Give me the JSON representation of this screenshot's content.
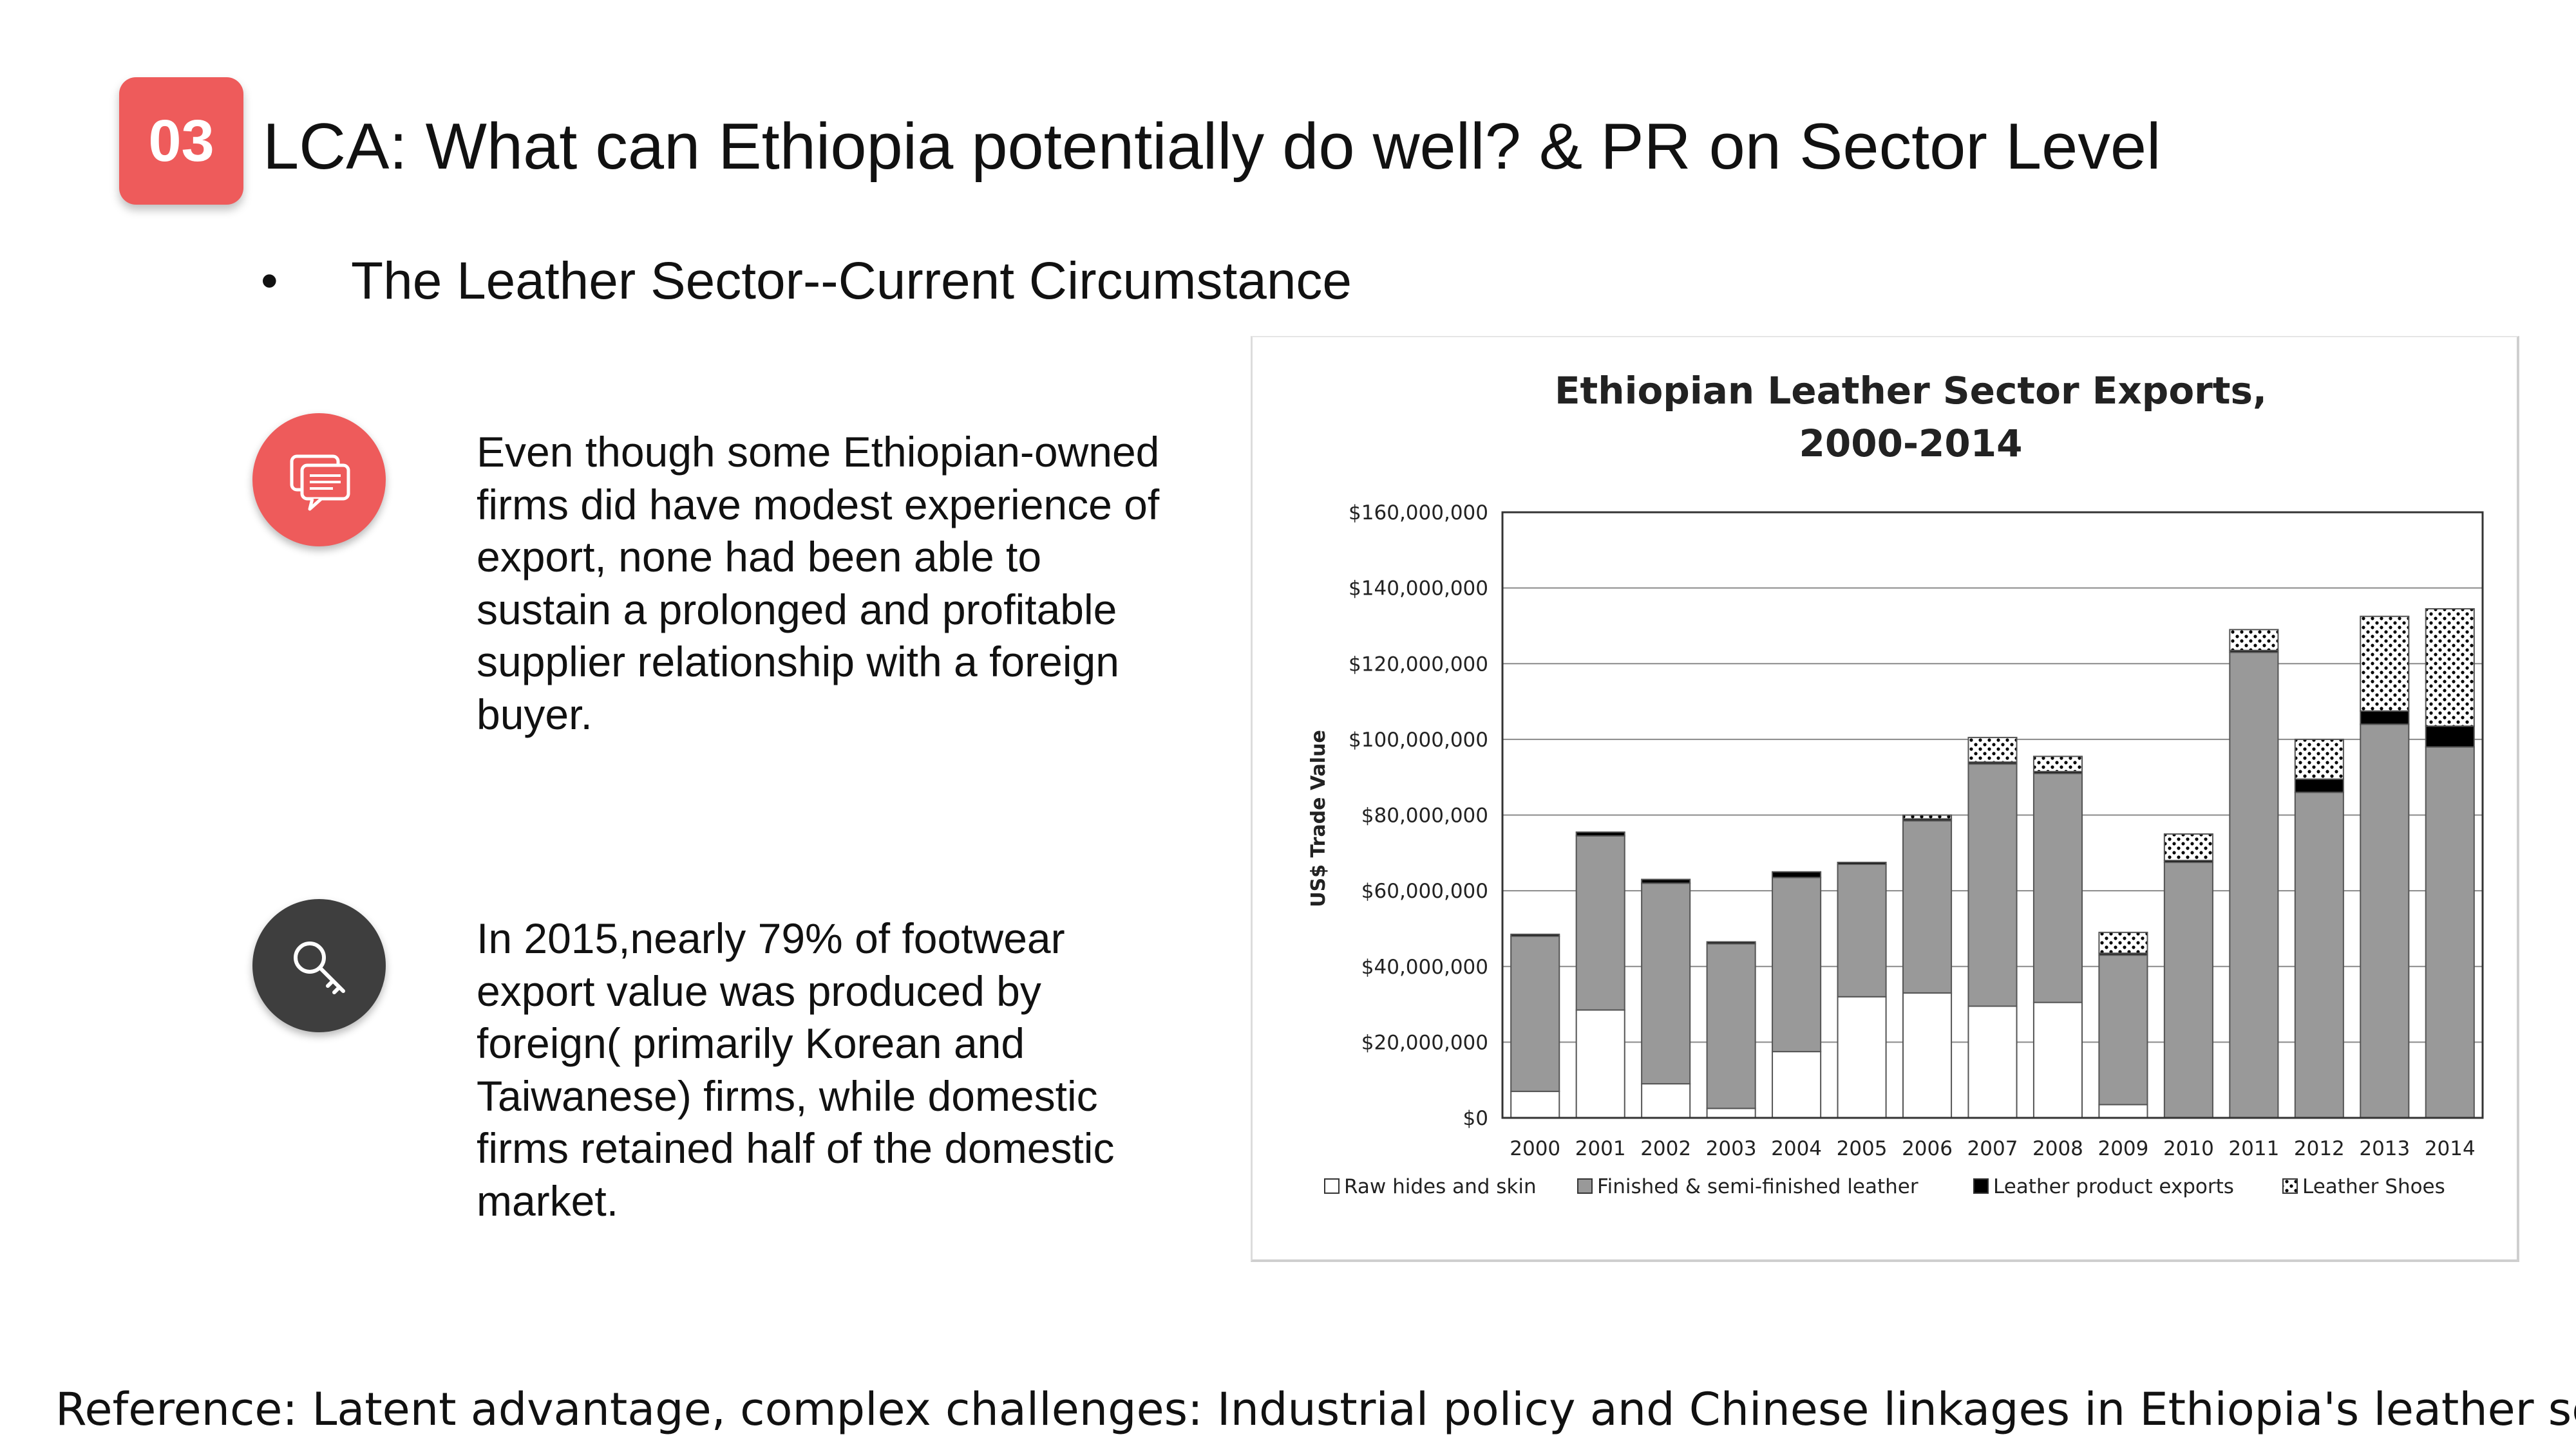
{
  "slide": {
    "number": "03",
    "title": "LCA: What can Ethiopia potentially do well? & PR on Sector Level",
    "bullet": "•",
    "subtitle": "The Leather Sector--Current Circumstance",
    "points": [
      {
        "icon": "chat-icon",
        "text": "Even though some Ethiopian-owned firms did have modest experience of export, none had been able to sustain a prolonged and profitable supplier relationship with a foreign buyer."
      },
      {
        "icon": "key-icon",
        "text": "In 2015,nearly 79% of footwear export value was produced by foreign( primarily Korean and Taiwanese) firms, while domestic firms retained half of the domestic market."
      }
    ],
    "reference": "Reference: Latent advantage, complex challenges: Industrial policy and Chinese linkages in Ethiopia's leather sector",
    "colors": {
      "accent": "#ee5b5b",
      "dark_icon": "#3e3e3e",
      "bar_gray": "#999999"
    }
  },
  "chart_data": {
    "type": "bar",
    "stacked": true,
    "title_lines": [
      "Ethiopian Leather Sector Exports,",
      "2000-2014"
    ],
    "xlabel": "",
    "ylabel": "US$ Trade Value",
    "ylim": [
      0,
      160000000
    ],
    "yticks": [
      "$0",
      "$20,000,000",
      "$40,000,000",
      "$60,000,000",
      "$80,000,000",
      "$100,000,000",
      "$120,000,000",
      "$140,000,000",
      "$160,000,000"
    ],
    "categories": [
      "2000",
      "2001",
      "2002",
      "2003",
      "2004",
      "2005",
      "2006",
      "2007",
      "2008",
      "2009",
      "2010",
      "2011",
      "2012",
      "2013",
      "2014"
    ],
    "series": [
      {
        "name": "Raw hides and skin",
        "fill": "white",
        "values": [
          7000000,
          28500000,
          9000000,
          2500000,
          17500000,
          32000000,
          33000000,
          29500000,
          30500000,
          3500000,
          0,
          0,
          0,
          0,
          0
        ]
      },
      {
        "name": "Finished & semi-finished leather",
        "fill": "gray",
        "values": [
          41000000,
          46000000,
          53000000,
          43500000,
          46000000,
          35000000,
          45500000,
          64000000,
          60500000,
          39500000,
          67500000,
          123000000,
          86000000,
          104000000,
          98000000
        ]
      },
      {
        "name": "Leather product exports",
        "fill": "black",
        "values": [
          500000,
          1000000,
          1000000,
          500000,
          1500000,
          500000,
          500000,
          500000,
          500000,
          500000,
          500000,
          500000,
          3500000,
          3500000,
          5500000
        ]
      },
      {
        "name": "Leather Shoes",
        "fill": "dots",
        "values": [
          0,
          0,
          0,
          0,
          0,
          0,
          1000000,
          6500000,
          4000000,
          5500000,
          7000000,
          5500000,
          10500000,
          25000000,
          31000000
        ]
      }
    ],
    "grid": "horizontal",
    "legend": "bottom"
  }
}
